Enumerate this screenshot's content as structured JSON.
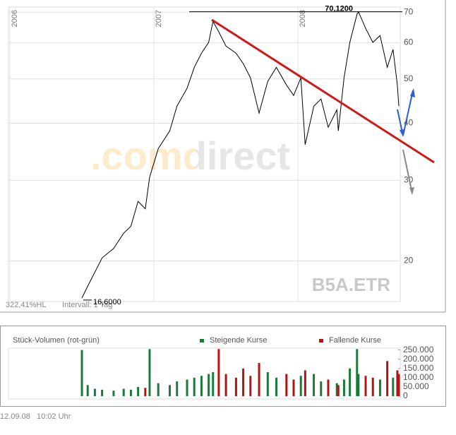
{
  "chart_data": [
    {
      "type": "line",
      "log_scale": true,
      "grid": true,
      "color": "#000000",
      "x": [
        2006.5,
        2006.54,
        2006.59,
        2006.64,
        2006.72,
        2006.79,
        2006.84,
        2006.89,
        2006.94,
        2006.97,
        2007.03,
        2007.11,
        2007.16,
        2007.23,
        2007.28,
        2007.33,
        2007.38,
        2007.41,
        2007.45,
        2007.5,
        2007.57,
        2007.62,
        2007.67,
        2007.73,
        2007.79,
        2007.85,
        2007.92,
        2007.97,
        2008.02,
        2008.05,
        2008.11,
        2008.16,
        2008.21,
        2008.27,
        2008.28,
        2008.32,
        2008.36,
        2008.41,
        2008.42,
        2008.47,
        2008.52,
        2008.57,
        2008.62,
        2008.66,
        2008.69,
        2008.7
      ],
      "values": [
        16.6,
        17.6,
        18.9,
        20.3,
        21.3,
        23.0,
        23.8,
        27.0,
        26.0,
        30.5,
        35.2,
        38.5,
        43.6,
        47.7,
        53.0,
        56.9,
        60.1,
        66.8,
        63.4,
        59.0,
        56.9,
        54.0,
        50.3,
        42.1,
        49.4,
        53.0,
        48.5,
        46.0,
        50.3,
        35.9,
        43.6,
        45.2,
        39.2,
        42.8,
        38.5,
        50.3,
        60.1,
        69.3,
        70.12,
        64.5,
        60.1,
        62.2,
        53.0,
        58.0,
        48.5,
        43.6
      ],
      "xlim": [
        2005.99,
        2008.71
      ],
      "xticks": [
        2006,
        2007,
        2008
      ],
      "ylim": [
        16.3,
        71.8
      ],
      "yticks": [
        20,
        30,
        40,
        50,
        60,
        70
      ],
      "annotations": [
        {
          "value": 70.12,
          "label": "70,1200"
        },
        {
          "value": 16.6,
          "label": "16,6000"
        }
      ],
      "watermark": ".comdirect",
      "symbol": "B5A.ETR",
      "range_label": "322,41%HL",
      "interval_label": "Intervall: 1 Tag"
    },
    {
      "type": "bar",
      "title": "Stück-Volumen (rot-grün)",
      "x": [
        2006.5,
        2006.54,
        2006.59,
        2006.64,
        2006.72,
        2006.79,
        2006.84,
        2006.89,
        2006.94,
        2006.97,
        2007.03,
        2007.11,
        2007.16,
        2007.23,
        2007.28,
        2007.33,
        2007.38,
        2007.41,
        2007.45,
        2007.5,
        2007.57,
        2007.62,
        2007.67,
        2007.73,
        2007.79,
        2007.85,
        2007.92,
        2007.97,
        2008.02,
        2008.05,
        2008.11,
        2008.16,
        2008.21,
        2008.27,
        2008.28,
        2008.32,
        2008.36,
        2008.41,
        2008.42,
        2008.47,
        2008.52,
        2008.57,
        2008.62,
        2008.66,
        2008.69,
        2008.7
      ],
      "xlim": [
        2005.99,
        2008.71
      ],
      "series": [
        {
          "name": "Steigende Kurse",
          "color": "#1a7a3a",
          "values": [
            250000,
            60000,
            40000,
            35000,
            30000,
            40000,
            35000,
            50000,
            null,
            255000,
            70000,
            60000,
            80000,
            90000,
            100000,
            110000,
            120000,
            130000,
            null,
            null,
            null,
            null,
            null,
            null,
            130000,
            100000,
            null,
            null,
            110000,
            null,
            120000,
            80000,
            null,
            70000,
            null,
            90000,
            150000,
            255000,
            120000,
            null,
            null,
            90000,
            null,
            100000,
            null,
            null
          ]
        },
        {
          "name": "Fallende Kurse",
          "color": "#b01515",
          "values": [
            null,
            null,
            null,
            null,
            null,
            null,
            null,
            null,
            45000,
            null,
            null,
            null,
            null,
            null,
            null,
            null,
            null,
            null,
            255000,
            120000,
            100000,
            150000,
            110000,
            180000,
            null,
            null,
            120000,
            90000,
            null,
            140000,
            null,
            null,
            90000,
            null,
            60000,
            null,
            null,
            null,
            null,
            110000,
            100000,
            null,
            190000,
            null,
            140000,
            120000
          ]
        }
      ],
      "ylim": [
        0,
        260000
      ],
      "yticks": [
        {
          "value": 250000,
          "label": "250.000"
        },
        {
          "value": 200000,
          "label": "200.000"
        },
        {
          "value": 150000,
          "label": "150.000"
        },
        {
          "value": 100000,
          "label": "100.000"
        },
        {
          "value": 50000,
          "label": "50.000"
        },
        0
      ]
    }
  ],
  "footer": "12.09.08   10:02 Uhr"
}
